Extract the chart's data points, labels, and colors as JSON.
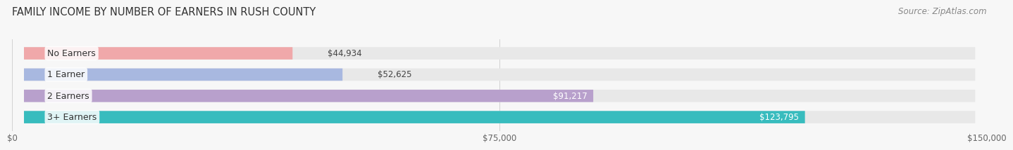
{
  "title": "FAMILY INCOME BY NUMBER OF EARNERS IN RUSH COUNTY",
  "source": "Source: ZipAtlas.com",
  "categories": [
    "No Earners",
    "1 Earner",
    "2 Earners",
    "3+ Earners"
  ],
  "values": [
    44934,
    52625,
    91217,
    123795
  ],
  "bar_colors": [
    "#f0a8aa",
    "#a8b8e0",
    "#b8a0cc",
    "#38bcbe"
  ],
  "track_color": "#e8e8e8",
  "label_colors": [
    "#555555",
    "#555555",
    "#ffffff",
    "#ffffff"
  ],
  "x_ticks": [
    0,
    75000,
    150000
  ],
  "x_tick_labels": [
    "$0",
    "$75,000",
    "$150,000"
  ],
  "xlim": [
    0,
    150000
  ],
  "title_fontsize": 10.5,
  "source_fontsize": 8.5,
  "label_fontsize": 8.5,
  "category_fontsize": 9,
  "value_fontsize": 8.5,
  "bar_height": 0.58,
  "background_color": "#f7f7f7"
}
